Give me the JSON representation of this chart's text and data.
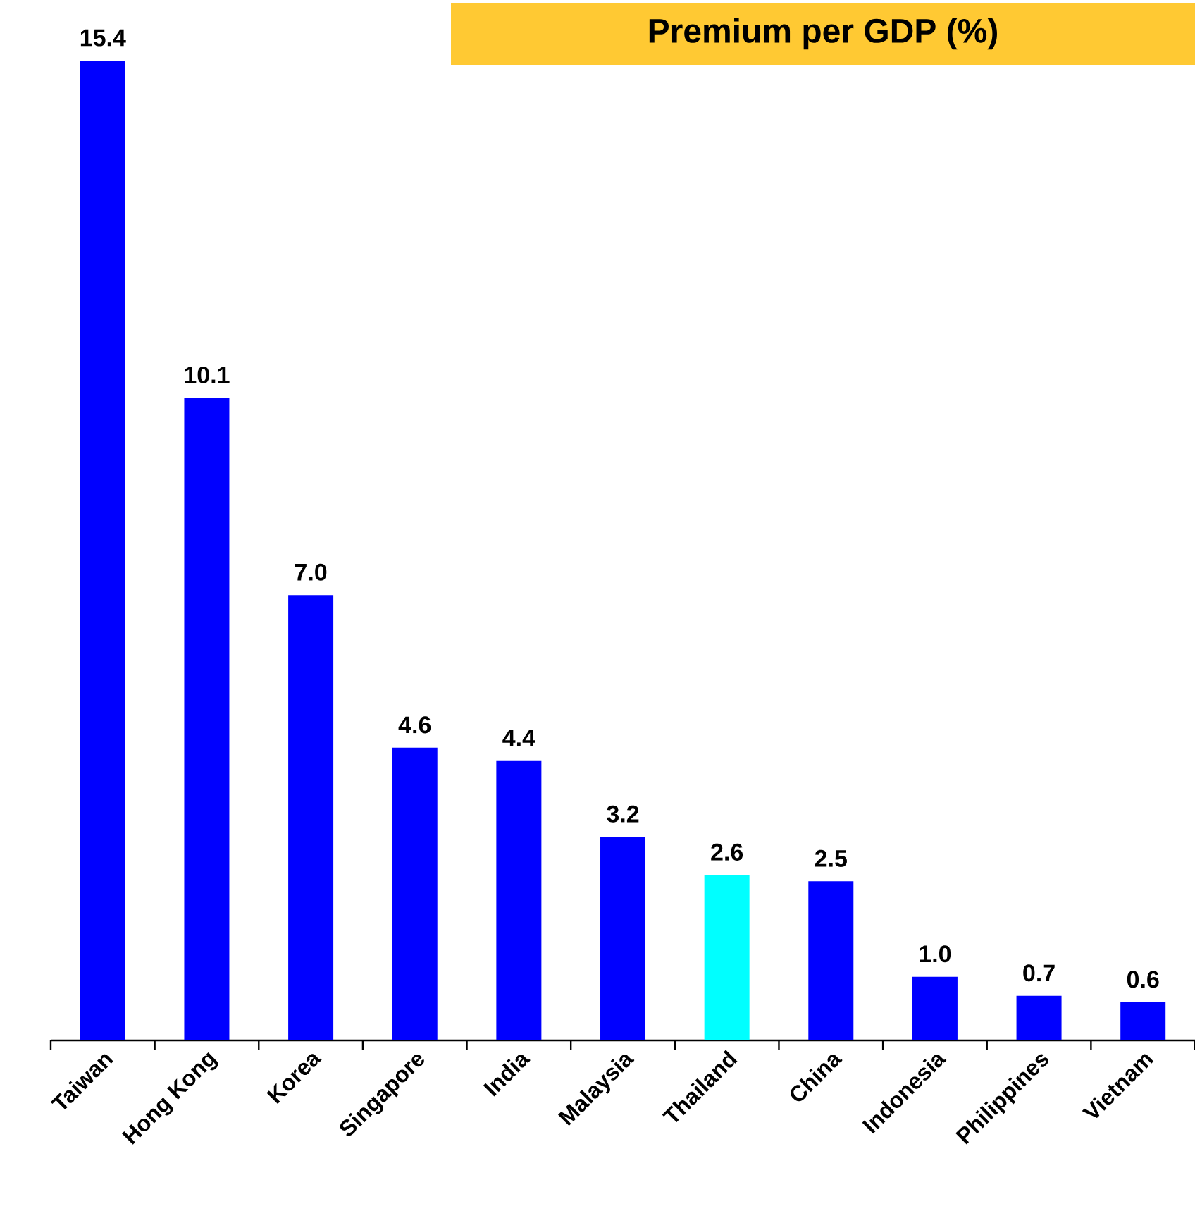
{
  "chart_data": {
    "type": "bar",
    "title": "Premium per GDP (%)",
    "categories": [
      "Taiwan",
      "Hong Kong",
      "Korea",
      "Singapore",
      "India",
      "Malaysia",
      "Thailand",
      "China",
      "Indonesia",
      "Philippines",
      "Vietnam"
    ],
    "values": [
      15.4,
      10.1,
      7.0,
      4.6,
      4.4,
      3.2,
      2.6,
      2.5,
      1.0,
      0.7,
      0.6
    ],
    "value_labels": [
      "15.4",
      "10.1",
      "7.0",
      "4.6",
      "4.4",
      "3.2",
      "2.6",
      "2.5",
      "1.0",
      "0.7",
      "0.6"
    ],
    "colors": [
      "#0000ff",
      "#0000ff",
      "#0000ff",
      "#0000ff",
      "#0000ff",
      "#0000ff",
      "#00ffff",
      "#0000ff",
      "#0000ff",
      "#0000ff",
      "#0000ff"
    ]
  }
}
